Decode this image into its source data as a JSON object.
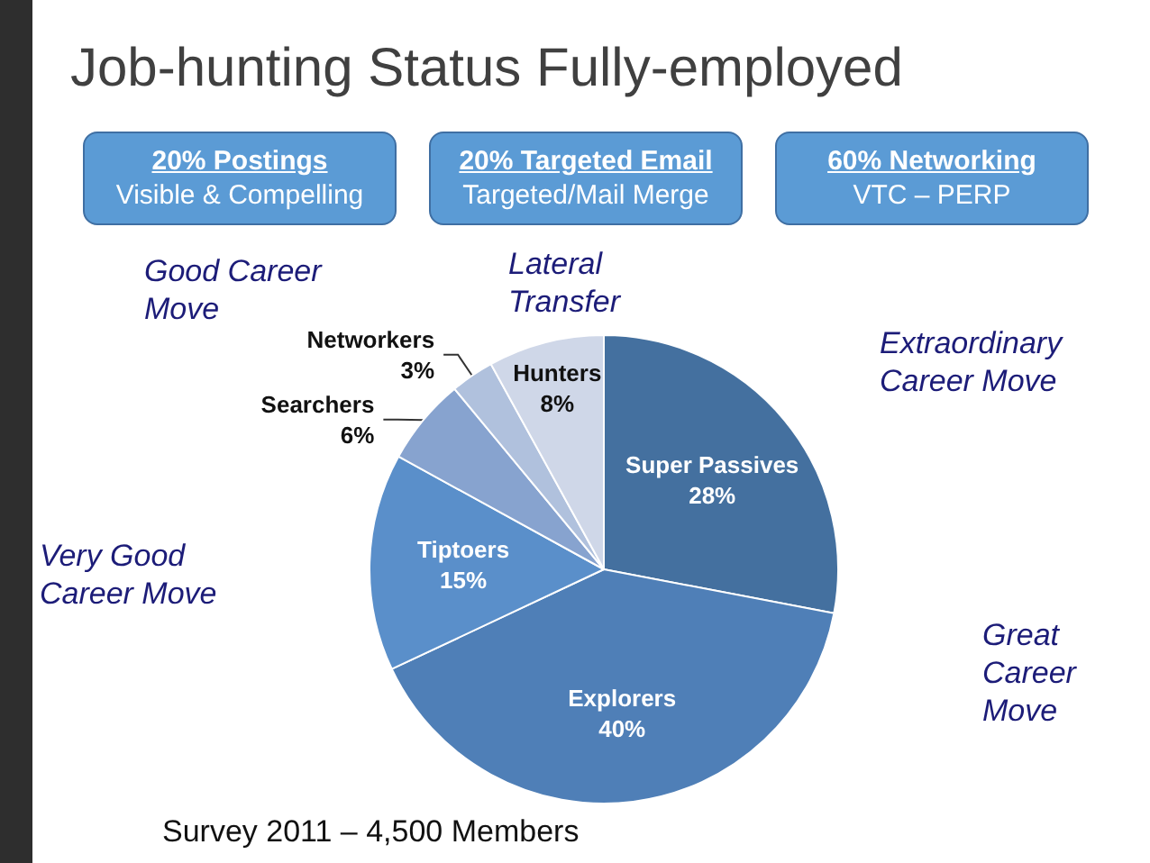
{
  "chart_data": {
    "type": "pie",
    "title": "Job-hunting Status Fully-employed",
    "categories": [
      "Super Passives",
      "Explorers",
      "Tiptoers",
      "Searchers",
      "Networkers",
      "Hunters"
    ],
    "values": [
      28,
      40,
      15,
      6,
      3,
      8
    ],
    "value_labels": [
      "28%",
      "40%",
      "15%",
      "6%",
      "3%",
      "8%"
    ],
    "colors": [
      "#44709f",
      "#4f7fb7",
      "#5a8fca",
      "#87a3cf",
      "#b0c1dd",
      "#cfd7e8"
    ],
    "annotations": [
      "20% Postings",
      "Visible & Compelling",
      "20% Targeted Email",
      "Targeted/Mail Merge",
      "60% Networking",
      "VTC – PERP",
      "Good Career Move",
      "Lateral Transfer",
      "Extraordinary Career Move",
      "Very Good Career Move",
      "Great Career Move",
      "Survey 2011 – 4,500 Members"
    ]
  }
}
